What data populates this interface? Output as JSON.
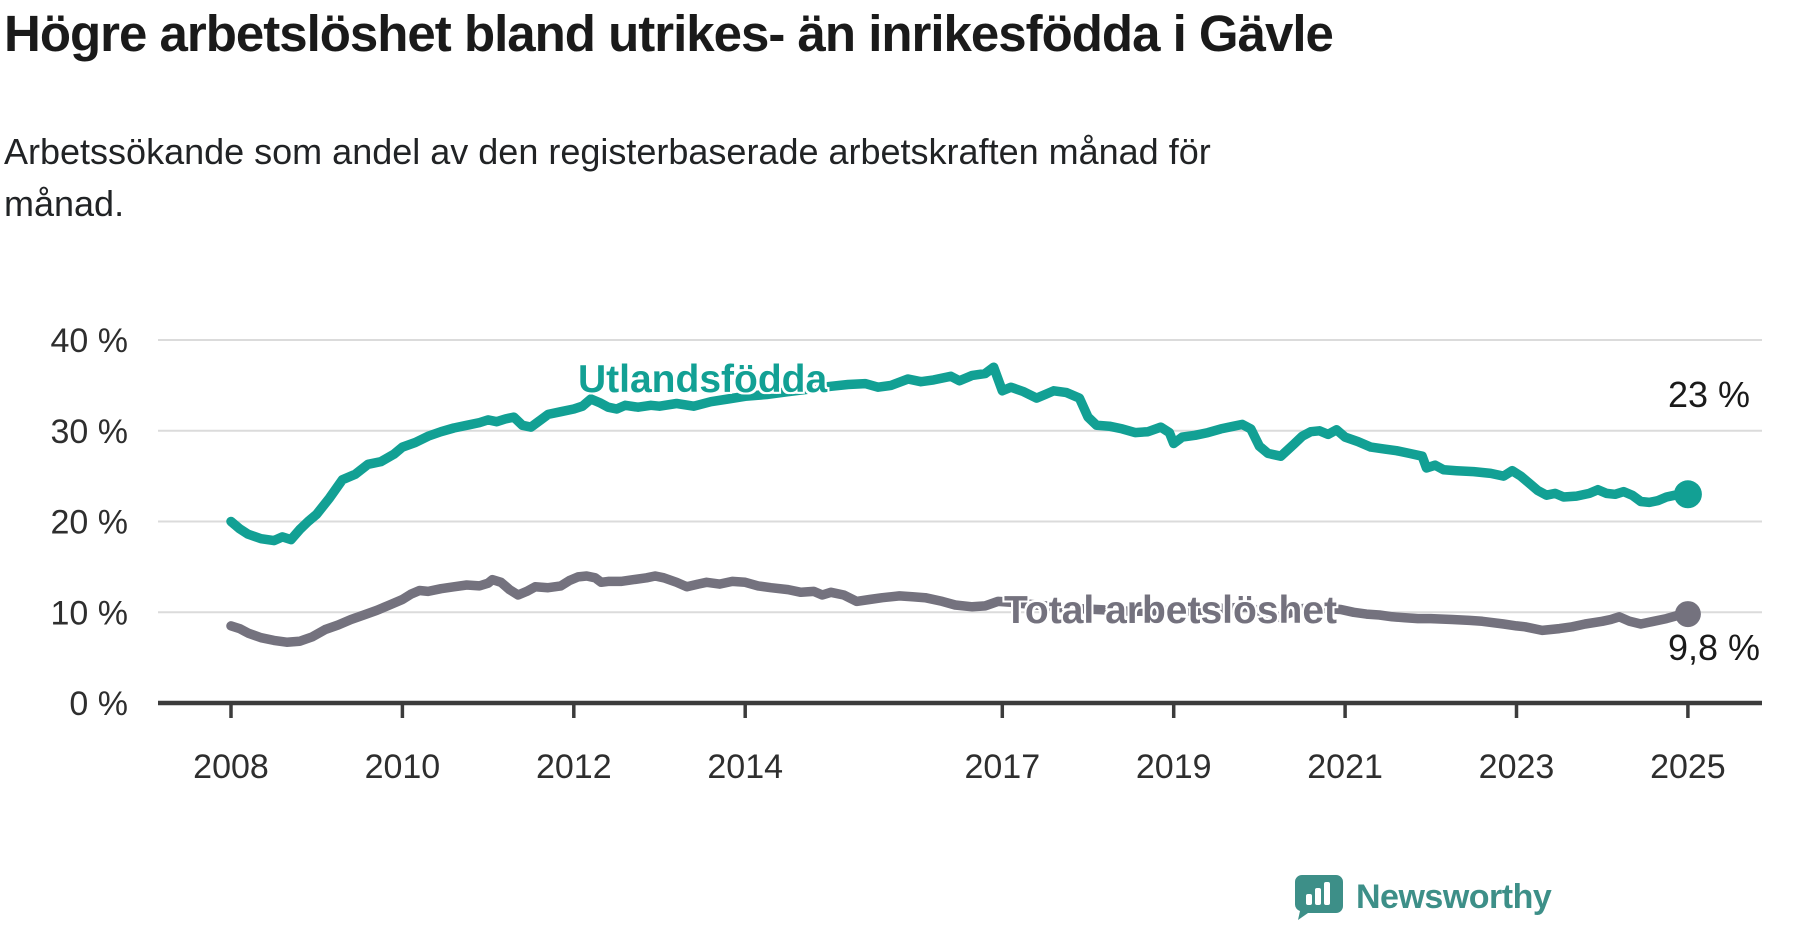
{
  "title": "Högre arbetslöshet bland utrikes- än inrikesfödda i Gävle",
  "subtitle_lines": [
    "Arbetssökande som andel av den registerbaserade arbetskraften månad för",
    "månad."
  ],
  "branding": {
    "logo_text": "Newsworthy",
    "logo_icon": "bar-chart-speech-bubble-icon",
    "brand_color": "#3d8f88"
  },
  "chart_data": {
    "type": "line",
    "unit": "%",
    "grid": true,
    "ylim": [
      0,
      40
    ],
    "y_ticks": [
      0,
      10,
      20,
      30,
      40
    ],
    "y_tick_labels": [
      "0 %",
      "10 %",
      "20 %",
      "30 %",
      "40 %"
    ],
    "x_ticks": [
      2008,
      2010,
      2012,
      2014,
      2017,
      2019,
      2021,
      2023,
      2025
    ],
    "x_range": [
      2008,
      2025
    ],
    "colors": {
      "utlandsfodda": "#12a094",
      "total": "#74727e",
      "gridline": "#dbdbdb",
      "axis": "#3c3c3c"
    },
    "series": [
      {
        "name": "Utlandsfödda",
        "color": "#12a094",
        "end_label": "23 %",
        "end_value": 23,
        "points": [
          [
            2008.0,
            20.0
          ],
          [
            2008.1,
            19.2
          ],
          [
            2008.2,
            18.6
          ],
          [
            2008.35,
            18.1
          ],
          [
            2008.5,
            17.9
          ],
          [
            2008.6,
            18.3
          ],
          [
            2008.7,
            18.0
          ],
          [
            2008.8,
            19.1
          ],
          [
            2008.9,
            20.0
          ],
          [
            2009.0,
            20.8
          ],
          [
            2009.15,
            22.6
          ],
          [
            2009.3,
            24.6
          ],
          [
            2009.45,
            25.2
          ],
          [
            2009.6,
            26.3
          ],
          [
            2009.75,
            26.6
          ],
          [
            2009.9,
            27.4
          ],
          [
            2010.0,
            28.2
          ],
          [
            2010.15,
            28.7
          ],
          [
            2010.3,
            29.4
          ],
          [
            2010.45,
            29.9
          ],
          [
            2010.6,
            30.3
          ],
          [
            2010.75,
            30.6
          ],
          [
            2010.9,
            30.9
          ],
          [
            2011.0,
            31.2
          ],
          [
            2011.1,
            31.0
          ],
          [
            2011.2,
            31.3
          ],
          [
            2011.3,
            31.5
          ],
          [
            2011.4,
            30.6
          ],
          [
            2011.5,
            30.4
          ],
          [
            2011.6,
            31.1
          ],
          [
            2011.7,
            31.8
          ],
          [
            2011.85,
            32.1
          ],
          [
            2012.0,
            32.4
          ],
          [
            2012.1,
            32.7
          ],
          [
            2012.2,
            33.5
          ],
          [
            2012.3,
            33.1
          ],
          [
            2012.4,
            32.6
          ],
          [
            2012.5,
            32.4
          ],
          [
            2012.6,
            32.8
          ],
          [
            2012.75,
            32.6
          ],
          [
            2012.9,
            32.8
          ],
          [
            2013.0,
            32.7
          ],
          [
            2013.2,
            33.0
          ],
          [
            2013.4,
            32.7
          ],
          [
            2013.6,
            33.2
          ],
          [
            2013.8,
            33.5
          ],
          [
            2014.0,
            33.8
          ],
          [
            2014.25,
            34.0
          ],
          [
            2014.5,
            34.3
          ],
          [
            2014.75,
            34.6
          ],
          [
            2015.0,
            34.9
          ],
          [
            2015.2,
            35.1
          ],
          [
            2015.4,
            35.2
          ],
          [
            2015.55,
            34.8
          ],
          [
            2015.7,
            35.0
          ],
          [
            2015.9,
            35.7
          ],
          [
            2016.05,
            35.4
          ],
          [
            2016.2,
            35.6
          ],
          [
            2016.4,
            36.0
          ],
          [
            2016.5,
            35.5
          ],
          [
            2016.65,
            36.1
          ],
          [
            2016.8,
            36.3
          ],
          [
            2016.9,
            37.0
          ],
          [
            2017.0,
            34.4
          ],
          [
            2017.1,
            34.8
          ],
          [
            2017.25,
            34.3
          ],
          [
            2017.4,
            33.6
          ],
          [
            2017.5,
            34.0
          ],
          [
            2017.6,
            34.4
          ],
          [
            2017.75,
            34.2
          ],
          [
            2017.9,
            33.6
          ],
          [
            2018.0,
            31.5
          ],
          [
            2018.1,
            30.6
          ],
          [
            2018.25,
            30.5
          ],
          [
            2018.4,
            30.2
          ],
          [
            2018.55,
            29.8
          ],
          [
            2018.7,
            29.9
          ],
          [
            2018.85,
            30.4
          ],
          [
            2018.95,
            29.8
          ],
          [
            2019.0,
            28.6
          ],
          [
            2019.1,
            29.3
          ],
          [
            2019.25,
            29.5
          ],
          [
            2019.4,
            29.8
          ],
          [
            2019.55,
            30.2
          ],
          [
            2019.7,
            30.5
          ],
          [
            2019.8,
            30.7
          ],
          [
            2019.9,
            30.2
          ],
          [
            2020.0,
            28.3
          ],
          [
            2020.1,
            27.5
          ],
          [
            2020.25,
            27.2
          ],
          [
            2020.4,
            28.5
          ],
          [
            2020.5,
            29.4
          ],
          [
            2020.6,
            29.9
          ],
          [
            2020.7,
            30.0
          ],
          [
            2020.8,
            29.6
          ],
          [
            2020.9,
            30.1
          ],
          [
            2021.0,
            29.3
          ],
          [
            2021.15,
            28.8
          ],
          [
            2021.3,
            28.2
          ],
          [
            2021.45,
            28.0
          ],
          [
            2021.6,
            27.8
          ],
          [
            2021.75,
            27.5
          ],
          [
            2021.9,
            27.2
          ],
          [
            2021.95,
            25.9
          ],
          [
            2022.05,
            26.2
          ],
          [
            2022.15,
            25.7
          ],
          [
            2022.3,
            25.6
          ],
          [
            2022.5,
            25.5
          ],
          [
            2022.7,
            25.3
          ],
          [
            2022.85,
            25.0
          ],
          [
            2022.95,
            25.6
          ],
          [
            2023.05,
            25.0
          ],
          [
            2023.15,
            24.2
          ],
          [
            2023.25,
            23.4
          ],
          [
            2023.35,
            22.9
          ],
          [
            2023.45,
            23.1
          ],
          [
            2023.55,
            22.7
          ],
          [
            2023.7,
            22.8
          ],
          [
            2023.85,
            23.1
          ],
          [
            2023.95,
            23.5
          ],
          [
            2024.05,
            23.1
          ],
          [
            2024.15,
            23.0
          ],
          [
            2024.25,
            23.3
          ],
          [
            2024.35,
            22.9
          ],
          [
            2024.45,
            22.2
          ],
          [
            2024.55,
            22.1
          ],
          [
            2024.65,
            22.3
          ],
          [
            2024.75,
            22.7
          ],
          [
            2024.85,
            22.9
          ],
          [
            2025.0,
            23.0
          ]
        ]
      },
      {
        "name": "Total arbetslöshet",
        "color": "#74727e",
        "end_label": "9,8 %",
        "end_value": 9.8,
        "points": [
          [
            2008.0,
            8.5
          ],
          [
            2008.1,
            8.2
          ],
          [
            2008.2,
            7.7
          ],
          [
            2008.35,
            7.2
          ],
          [
            2008.5,
            6.9
          ],
          [
            2008.65,
            6.7
          ],
          [
            2008.8,
            6.8
          ],
          [
            2008.95,
            7.3
          ],
          [
            2009.1,
            8.1
          ],
          [
            2009.25,
            8.6
          ],
          [
            2009.4,
            9.2
          ],
          [
            2009.55,
            9.7
          ],
          [
            2009.7,
            10.2
          ],
          [
            2009.85,
            10.8
          ],
          [
            2010.0,
            11.4
          ],
          [
            2010.1,
            12.0
          ],
          [
            2010.2,
            12.4
          ],
          [
            2010.3,
            12.3
          ],
          [
            2010.45,
            12.6
          ],
          [
            2010.6,
            12.8
          ],
          [
            2010.75,
            13.0
          ],
          [
            2010.9,
            12.9
          ],
          [
            2011.0,
            13.2
          ],
          [
            2011.05,
            13.6
          ],
          [
            2011.15,
            13.3
          ],
          [
            2011.25,
            12.5
          ],
          [
            2011.35,
            11.9
          ],
          [
            2011.45,
            12.3
          ],
          [
            2011.55,
            12.8
          ],
          [
            2011.7,
            12.7
          ],
          [
            2011.85,
            12.9
          ],
          [
            2011.95,
            13.5
          ],
          [
            2012.05,
            13.9
          ],
          [
            2012.15,
            14.0
          ],
          [
            2012.25,
            13.8
          ],
          [
            2012.32,
            13.3
          ],
          [
            2012.4,
            13.4
          ],
          [
            2012.55,
            13.4
          ],
          [
            2012.7,
            13.6
          ],
          [
            2012.85,
            13.8
          ],
          [
            2012.95,
            14.0
          ],
          [
            2013.05,
            13.8
          ],
          [
            2013.2,
            13.3
          ],
          [
            2013.32,
            12.8
          ],
          [
            2013.45,
            13.1
          ],
          [
            2013.55,
            13.3
          ],
          [
            2013.7,
            13.1
          ],
          [
            2013.85,
            13.4
          ],
          [
            2014.0,
            13.3
          ],
          [
            2014.15,
            12.9
          ],
          [
            2014.3,
            12.7
          ],
          [
            2014.5,
            12.5
          ],
          [
            2014.65,
            12.2
          ],
          [
            2014.8,
            12.3
          ],
          [
            2014.9,
            11.9
          ],
          [
            2015.0,
            12.2
          ],
          [
            2015.15,
            11.9
          ],
          [
            2015.3,
            11.2
          ],
          [
            2015.45,
            11.4
          ],
          [
            2015.6,
            11.6
          ],
          [
            2015.8,
            11.8
          ],
          [
            2015.95,
            11.7
          ],
          [
            2016.1,
            11.6
          ],
          [
            2016.3,
            11.2
          ],
          [
            2016.45,
            10.8
          ],
          [
            2016.65,
            10.6
          ],
          [
            2016.8,
            10.7
          ],
          [
            2016.95,
            11.2
          ],
          [
            2017.1,
            11.1
          ],
          [
            2017.3,
            10.9
          ],
          [
            2017.5,
            10.7
          ],
          [
            2017.7,
            10.5
          ],
          [
            2017.9,
            10.4
          ],
          [
            2018.1,
            10.3
          ],
          [
            2018.3,
            10.2
          ],
          [
            2018.5,
            10.1
          ],
          [
            2018.7,
            10.1
          ],
          [
            2018.9,
            10.2
          ],
          [
            2019.1,
            10.1
          ],
          [
            2019.3,
            10.2
          ],
          [
            2019.5,
            10.4
          ],
          [
            2019.7,
            10.5
          ],
          [
            2019.85,
            10.6
          ],
          [
            2019.95,
            10.3
          ],
          [
            2020.05,
            9.6
          ],
          [
            2020.2,
            9.4
          ],
          [
            2020.35,
            9.9
          ],
          [
            2020.5,
            10.4
          ],
          [
            2020.65,
            10.5
          ],
          [
            2020.8,
            10.4
          ],
          [
            2020.95,
            10.3
          ],
          [
            2021.1,
            10.0
          ],
          [
            2021.25,
            9.8
          ],
          [
            2021.4,
            9.7
          ],
          [
            2021.55,
            9.5
          ],
          [
            2021.7,
            9.4
          ],
          [
            2021.85,
            9.3
          ],
          [
            2022.0,
            9.3
          ],
          [
            2022.25,
            9.2
          ],
          [
            2022.45,
            9.1
          ],
          [
            2022.6,
            9.0
          ],
          [
            2022.85,
            8.7
          ],
          [
            2023.0,
            8.5
          ],
          [
            2023.1,
            8.4
          ],
          [
            2023.3,
            8.0
          ],
          [
            2023.5,
            8.2
          ],
          [
            2023.65,
            8.4
          ],
          [
            2023.8,
            8.7
          ],
          [
            2024.0,
            9.0
          ],
          [
            2024.1,
            9.2
          ],
          [
            2024.2,
            9.5
          ],
          [
            2024.32,
            9.0
          ],
          [
            2024.45,
            8.7
          ],
          [
            2024.6,
            9.0
          ],
          [
            2024.75,
            9.3
          ],
          [
            2024.9,
            9.7
          ],
          [
            2025.0,
            9.8
          ]
        ]
      }
    ]
  }
}
